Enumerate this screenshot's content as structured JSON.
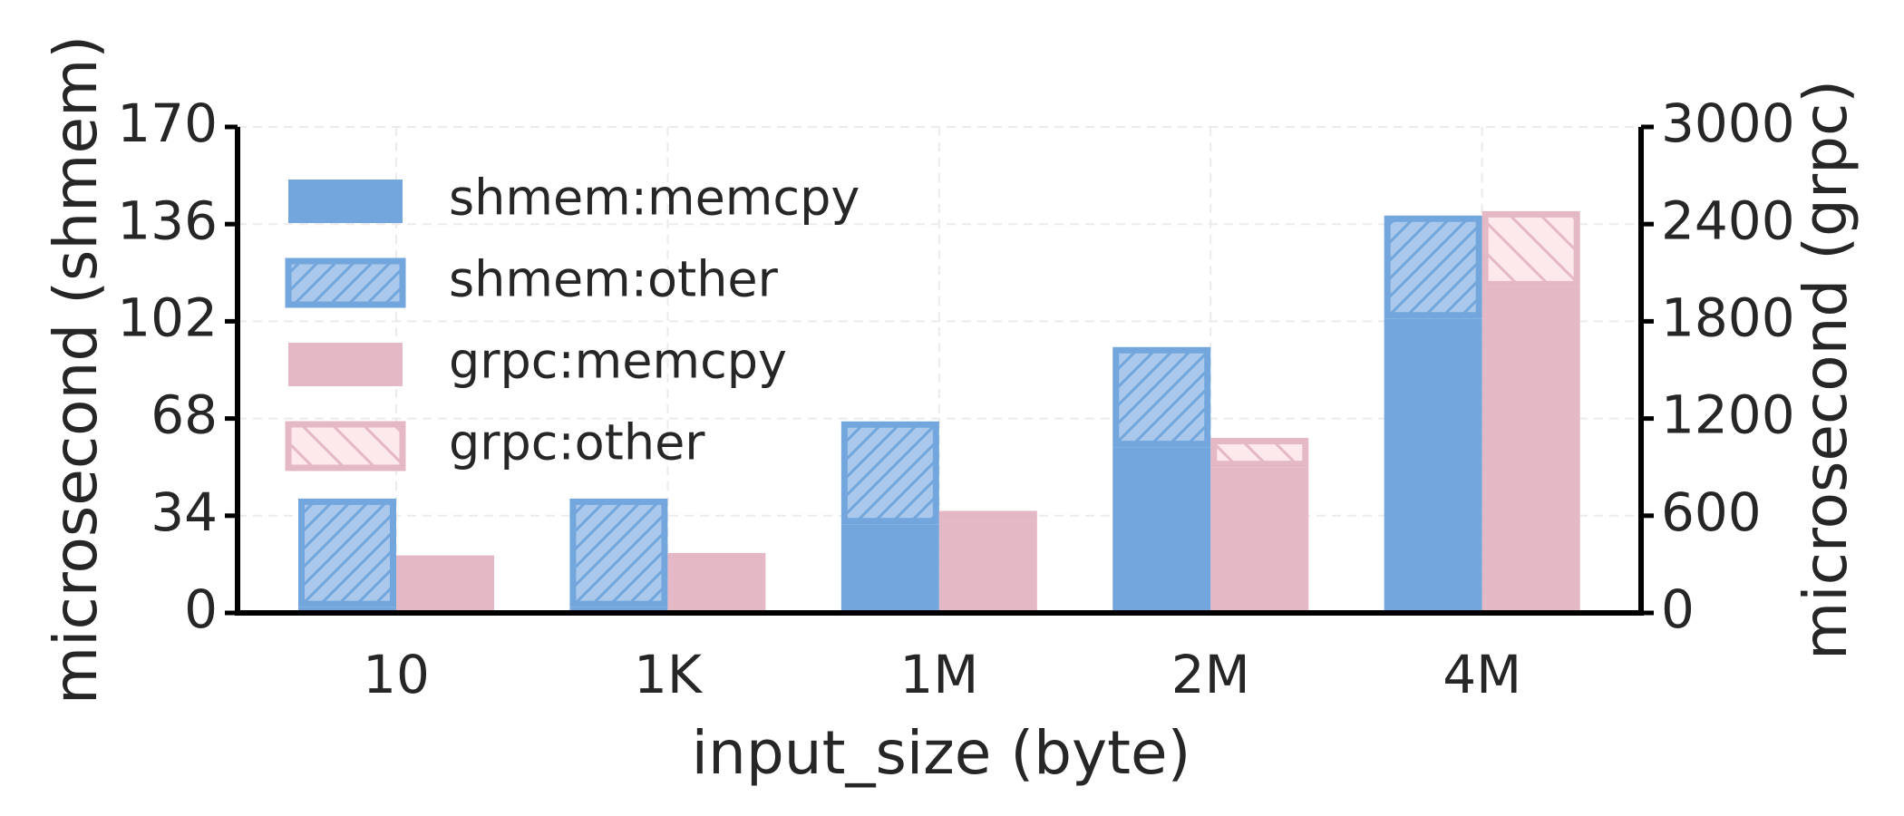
{
  "chart_data": {
    "type": "bar",
    "stacked": true,
    "xlabel": "input_size (byte)",
    "ylabel": "microsecond (shmem)",
    "y2label": "microsecond (grpc)",
    "categories": [
      "10",
      "1K",
      "1M",
      "2M",
      "4M"
    ],
    "series": [
      {
        "name": "shmem:memcpy",
        "color": "#72a6dc",
        "values": [
          2,
          2,
          31,
          58,
          103
        ],
        "axis": "y"
      },
      {
        "name": "shmem:other",
        "color": "#a9c8ec",
        "edgecolor": "#72a6dc",
        "hatch": "/",
        "values": [
          38,
          38,
          36,
          35,
          36
        ],
        "axis": "y"
      },
      {
        "name": "grpc:memcpy",
        "color": "#e4b8c4",
        "values": [
          355,
          330,
          560,
          900,
          2010
        ],
        "axis": "y2"
      },
      {
        "name": "grpc:other",
        "color": "#fde8ec",
        "edgecolor": "#e4b8c4",
        "hatch": "\\",
        "values": [
          10,
          40,
          70,
          180,
          470
        ],
        "axis": "y2"
      }
    ],
    "ylim": [
      0,
      170
    ],
    "yticks": [
      0,
      34,
      68,
      102,
      136,
      170
    ],
    "y2lim": [
      0,
      3000
    ],
    "y2ticks": [
      0,
      600,
      1200,
      1800,
      2400,
      3000
    ],
    "grid": true,
    "legend": "upper left"
  }
}
